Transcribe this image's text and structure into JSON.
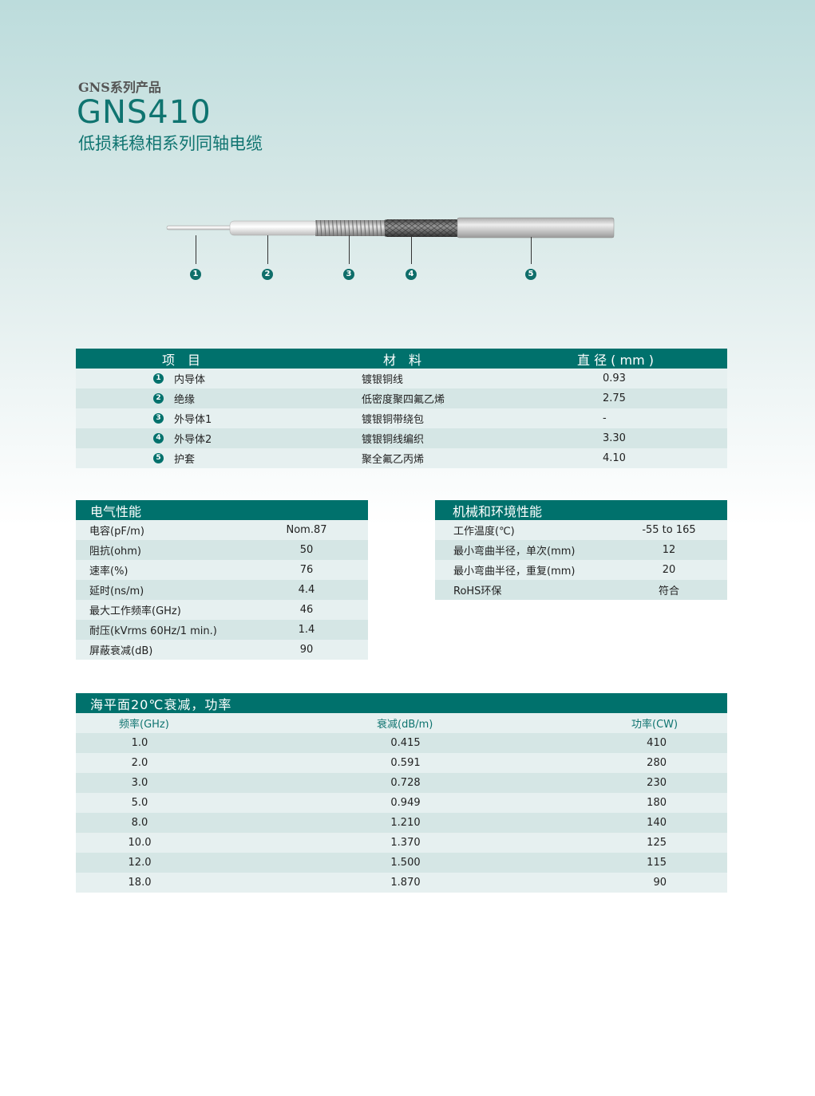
{
  "header": {
    "series": "GNS系列产品",
    "model": "GNS410",
    "subtitle": "低损耗稳相系列同轴电缆"
  },
  "diagram": {
    "callouts": [
      "1",
      "2",
      "3",
      "4",
      "5"
    ]
  },
  "structure": {
    "headers": [
      "项　目",
      "材　料",
      "直 径 ( mm )"
    ],
    "rows": [
      {
        "n": "1",
        "item": "内导体",
        "material": "镀银铜线",
        "diameter": "0.93"
      },
      {
        "n": "2",
        "item": "绝缘",
        "material": "低密度聚四氟乙烯",
        "diameter": "2.75"
      },
      {
        "n": "3",
        "item": "外导体1",
        "material": "镀银铜带绕包",
        "diameter": "-"
      },
      {
        "n": "4",
        "item": "外导体2",
        "material": "镀银铜线编织",
        "diameter": "3.30"
      },
      {
        "n": "5",
        "item": "护套",
        "material": "聚全氟乙丙烯",
        "diameter": "4.10"
      }
    ]
  },
  "electrical": {
    "title": "电气性能",
    "rows": [
      {
        "k": "电容(pF/m)",
        "v": "Nom.87"
      },
      {
        "k": "阻抗(ohm)",
        "v": "50"
      },
      {
        "k": "速率(%)",
        "v": "76"
      },
      {
        "k": "延时(ns/m)",
        "v": "4.4"
      },
      {
        "k": "最大工作频率(GHz)",
        "v": "46"
      },
      {
        "k": "耐压(kVrms 60Hz/1 min.)",
        "v": "1.4"
      },
      {
        "k": "屏蔽衰减(dB)",
        "v": "90"
      }
    ]
  },
  "mechanical": {
    "title": "机械和环境性能",
    "rows": [
      {
        "k": "工作温度(℃)",
        "v": "-55 to 165"
      },
      {
        "k": "最小弯曲半径，单次(mm)",
        "v": "12"
      },
      {
        "k": "最小弯曲半径，重复(mm)",
        "v": "20"
      },
      {
        "k": "RoHS环保",
        "v": "符合"
      }
    ]
  },
  "attenuation": {
    "title": "海平面20℃衰减，功率",
    "columns": [
      "频率(GHz)",
      "衰减(dB/m)",
      "功率(CW)"
    ],
    "rows": [
      [
        "1.0",
        "0.415",
        "410"
      ],
      [
        "2.0",
        "0.591",
        "280"
      ],
      [
        "3.0",
        "0.728",
        "230"
      ],
      [
        "5.0",
        "0.949",
        "180"
      ],
      [
        "8.0",
        "1.210",
        "140"
      ],
      [
        "10.0",
        "1.370",
        "125"
      ],
      [
        "12.0",
        "1.500",
        "115"
      ],
      [
        "18.0",
        "1.870",
        "90"
      ]
    ]
  }
}
